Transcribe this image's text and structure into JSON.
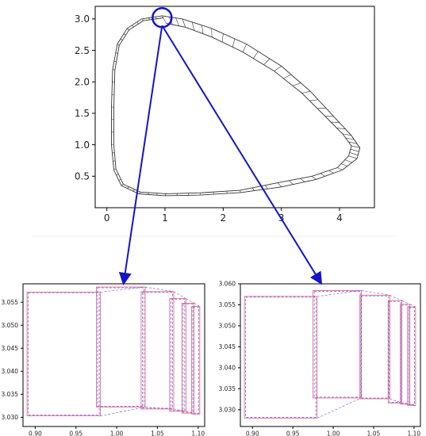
{
  "chart_data": [
    {
      "type": "line",
      "panel": "main",
      "xlim": [
        -0.2,
        4.6
      ],
      "ylim": [
        0.0,
        3.2
      ],
      "xticks": [
        0,
        1,
        2,
        3,
        4
      ],
      "yticks": [
        0.5,
        1.0,
        1.5,
        2.0,
        2.5,
        3.0
      ],
      "xtick_labels": [
        "0",
        "1",
        "2",
        "3",
        "4"
      ],
      "ytick_labels": [
        "0.5",
        "1.0",
        "1.5",
        "2.0",
        "2.5",
        "3.0"
      ],
      "grid": false,
      "series": [
        {
          "x": [
            0.95,
            1.3,
            1.8,
            2.4,
            3.0,
            3.5,
            3.9,
            4.2,
            4.35,
            4.3,
            4.05,
            3.6,
            3.0,
            2.3,
            1.6,
            1.0,
            0.55,
            0.25,
            0.12,
            0.08,
            0.08,
            0.1,
            0.18,
            0.35,
            0.6,
            0.95
          ],
          "y": [
            3.05,
            3.0,
            2.85,
            2.6,
            2.25,
            1.85,
            1.45,
            1.15,
            0.95,
            0.78,
            0.6,
            0.45,
            0.33,
            0.24,
            0.2,
            0.19,
            0.22,
            0.35,
            0.6,
            1.0,
            1.6,
            2.2,
            2.6,
            2.85,
            3.0,
            3.05
          ]
        }
      ],
      "highlight_circle": {
        "x": 0.95,
        "y": 3.02
      }
    },
    {
      "type": "line",
      "panel": "zoom-left",
      "xlim": [
        0.885,
        1.108
      ],
      "ylim": [
        3.028,
        3.059
      ],
      "xticks": [
        0.9,
        0.95,
        1.0,
        1.05,
        1.1
      ],
      "yticks": [
        3.03,
        3.035,
        3.04,
        3.045,
        3.05,
        3.055
      ],
      "xtick_labels": [
        "0.90",
        "0.95",
        "1.00",
        "1.05",
        "1.10"
      ],
      "ytick_labels": [
        "3.030",
        "3.035",
        "3.040",
        "3.045",
        "3.050",
        "3.055"
      ],
      "grid": false,
      "boxes": [
        {
          "x": [
            0.89,
            0.98
          ],
          "y": [
            3.0303,
            3.0572
          ]
        },
        {
          "x": [
            0.975,
            1.035
          ],
          "y": [
            3.0322,
            3.0583
          ]
        },
        {
          "x": [
            1.03,
            1.07
          ],
          "y": [
            3.0318,
            3.0573
          ]
        },
        {
          "x": [
            1.065,
            1.085
          ],
          "y": [
            3.0313,
            3.0558
          ]
        },
        {
          "x": [
            1.08,
            1.095
          ],
          "y": [
            3.0309,
            3.0548
          ]
        },
        {
          "x": [
            1.092,
            1.102
          ],
          "y": [
            3.0307,
            3.0541
          ]
        }
      ]
    },
    {
      "type": "line",
      "panel": "zoom-right",
      "xlim": [
        0.885,
        1.108
      ],
      "ylim": [
        3.026,
        3.06
      ],
      "xticks": [
        0.9,
        0.95,
        1.0,
        1.05,
        1.1
      ],
      "yticks": [
        3.03,
        3.035,
        3.04,
        3.045,
        3.05,
        3.055,
        3.06
      ],
      "xtick_labels": [
        "0.90",
        "0.95",
        "1.00",
        "1.05",
        "1.10"
      ],
      "ytick_labels": [
        "3.030",
        "3.035",
        "3.040",
        "3.045",
        "3.050",
        "3.055",
        "3.060"
      ],
      "grid": false,
      "boxes": [
        {
          "x": [
            0.89,
            0.98
          ],
          "y": [
            3.028,
            3.057
          ]
        },
        {
          "x": [
            0.975,
            1.035
          ],
          "y": [
            3.0328,
            3.0584
          ]
        },
        {
          "x": [
            1.033,
            1.07
          ],
          "y": [
            3.0326,
            3.0573
          ]
        },
        {
          "x": [
            1.068,
            1.085
          ],
          "y": [
            3.0316,
            3.056
          ]
        },
        {
          "x": [
            1.083,
            1.095
          ],
          "y": [
            3.0313,
            3.0551
          ]
        },
        {
          "x": [
            1.092,
            1.102
          ],
          "y": [
            3.031,
            3.0545
          ]
        }
      ]
    }
  ],
  "colors": {
    "main_line": "#333333",
    "callout": "#1414c8",
    "zoom_solid": "#e06080",
    "zoom_dashed": "#6a4ed8",
    "frame": "#000000"
  }
}
